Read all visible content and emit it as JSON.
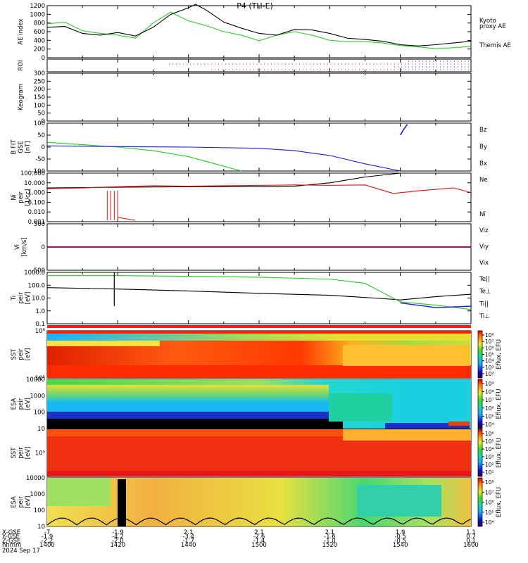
{
  "title": "P4  (TH-E)",
  "colors": {
    "black": "#000000",
    "red": "#e01010",
    "green": "#1fcc1f",
    "blue": "#1a1ae6",
    "ae_green": "#2ecc2e",
    "bar_red": "#ff1a1a"
  },
  "panels": [
    {
      "id": "ae",
      "ylabel": [
        "AE index"
      ],
      "yticks": [
        "1200",
        "1000",
        "800",
        "600",
        "400",
        "200",
        "0"
      ],
      "legend": [
        {
          "text": "Kyoto",
          "color": "#2ecc2e"
        },
        {
          "text": "proxy AE",
          "color": "#2ecc2e"
        },
        {
          "text": "Themis AE",
          "color": "#000000"
        }
      ]
    },
    {
      "id": "roi",
      "ylabel": [
        "ROI"
      ],
      "yticks": []
    },
    {
      "id": "keogram",
      "ylabel": [
        "Keogram"
      ],
      "yticks": [
        "300",
        "250",
        "200",
        "150",
        "100",
        "50",
        "0"
      ]
    },
    {
      "id": "bfit",
      "ylabel": [
        "B FIT",
        "GSE",
        "[nT]"
      ],
      "yticks": [
        "100",
        "50",
        "0",
        "-50",
        "-100"
      ],
      "legend": [
        {
          "text": "Bz",
          "color": "#e01010"
        },
        {
          "text": "By",
          "color": "#1fcc1f"
        },
        {
          "text": "Bx",
          "color": "#1a1ae6"
        }
      ]
    },
    {
      "id": "density",
      "ylabel": [
        "Ni",
        "peir",
        "[1/cc]"
      ],
      "yticks": [
        "100.000",
        "10.000",
        "1.000",
        "0.100",
        "0.010",
        "0.001"
      ],
      "legend": [
        {
          "text": "Ne",
          "color": "#e01010"
        },
        {
          "text": "Ni",
          "color": "#000000"
        }
      ]
    },
    {
      "id": "velocity",
      "ylabel": [
        "Vi",
        "[km/s]"
      ],
      "yticks": [
        "500",
        "0",
        "-500"
      ],
      "legend": [
        {
          "text": "Viz",
          "color": "#e01010"
        },
        {
          "text": "Viy",
          "color": "#1fcc1f"
        },
        {
          "text": "Vix",
          "color": "#1a1ae6"
        }
      ]
    },
    {
      "id": "temperature",
      "ylabel": [
        "Ti",
        "peir",
        "[eV]"
      ],
      "yticks": [
        "1000.0",
        "100.0",
        "10.0",
        "1.0",
        "0.1"
      ],
      "legend": [
        {
          "text": "Te||",
          "color": "#000000"
        },
        {
          "text": "Te⊥",
          "color": "#e01010"
        },
        {
          "text": "Ti||",
          "color": "#1fcc1f"
        },
        {
          "text": "Ti⊥",
          "color": "#1a1ae6"
        }
      ]
    },
    {
      "id": "sst_e",
      "ylabel": [
        "SST",
        "peir",
        "[eV]"
      ],
      "yticks": [
        "10⁶",
        "10⁵"
      ],
      "cbar": "Eflux, EFU",
      "cbar_ticks": [
        "10⁸",
        "10⁷",
        "10⁶",
        "10⁵",
        "10⁴",
        "10³",
        "10²"
      ]
    },
    {
      "id": "esa_e",
      "ylabel": [
        "ESA",
        "peir",
        "[eV]"
      ],
      "yticks": [
        "10000",
        "1000",
        "100",
        "10"
      ],
      "cbar": "Eflux, EFU",
      "cbar_ticks": [
        "10⁹",
        "10⁸",
        "10⁷",
        "10⁶",
        "10⁵",
        "10⁴"
      ]
    },
    {
      "id": "sst_i",
      "ylabel": [
        "SST",
        "peir",
        "[eV]"
      ],
      "yticks": [
        "10⁵"
      ],
      "cbar": "Eflux, EFU",
      "cbar_ticks": [
        "10⁶",
        "10⁵",
        "10⁴",
        "10³",
        "10²",
        "10¹"
      ]
    },
    {
      "id": "esa_i",
      "ylabel": [
        "ESA",
        "peir",
        "[eV]"
      ],
      "yticks": [
        "10000",
        "1000",
        "100",
        "10"
      ],
      "cbar": "Eflux, EFU",
      "cbar_ticks": [
        "10⁸",
        "10⁷",
        "10⁶",
        "10⁵",
        "10⁴"
      ]
    }
  ],
  "footer": {
    "row_labels": [
      "X-GSE",
      "Y-GSE",
      "Z-GSE",
      "hhmm",
      "2024 Sep 17"
    ],
    "columns": [
      {
        "x": "-7",
        "y": "-1.9",
        "z": "-2.2",
        "t": "1400"
      },
      {
        "x": "-1.9",
        "y": "-4.2",
        "z": "-2.0",
        "t": "1420"
      },
      {
        "x": "2.1",
        "y": "-3.4",
        "z": "-1.7",
        "t": "1440"
      },
      {
        "x": "2.1",
        "y": "-2.6",
        "z": "-1.4",
        "t": "1500"
      },
      {
        "x": "2.1",
        "y": "-1.6",
        "z": "-1.0",
        "t": "1520"
      },
      {
        "x": "1.9",
        "y": "-0.5",
        "z": "-0.5",
        "t": "1540"
      },
      {
        "x": "1.1",
        "y": "0.7",
        "z": "0.1",
        "t": "1600"
      }
    ]
  },
  "chart_data": {
    "type": "line",
    "title": "P4  (TH-E)",
    "time_range": [
      "1400",
      "1600"
    ],
    "time_unit": "hhmm",
    "ae": {
      "ylim": [
        0,
        1200
      ],
      "series": [
        {
          "name": "Themis AE",
          "x": [
            1400,
            1405,
            1410,
            1415,
            1420,
            1425,
            1430,
            1435,
            1440,
            1442,
            1445,
            1450,
            1455,
            1500,
            1505,
            1510,
            1515,
            1520,
            1525,
            1530,
            1535,
            1540,
            1545,
            1550,
            1555,
            1600
          ],
          "values": [
            700,
            720,
            560,
            520,
            580,
            500,
            700,
            1000,
            1150,
            1230,
            1100,
            820,
            680,
            560,
            520,
            650,
            640,
            560,
            450,
            420,
            380,
            300,
            270,
            300,
            340,
            380
          ]
        },
        {
          "name": "Kyoto proxy AE",
          "x": [
            1400,
            1405,
            1410,
            1415,
            1420,
            1425,
            1430,
            1435,
            1440,
            1445,
            1450,
            1455,
            1500,
            1505,
            1510,
            1515,
            1520,
            1525,
            1530,
            1535,
            1540,
            1545,
            1550,
            1555,
            1600
          ],
          "values": [
            780,
            820,
            620,
            560,
            520,
            450,
            800,
            1050,
            850,
            740,
            600,
            520,
            390,
            520,
            600,
            520,
            400,
            370,
            370,
            340,
            280,
            250,
            210,
            230,
            260
          ]
        }
      ]
    },
    "bfit": {
      "ylim": [
        -100,
        100
      ],
      "series": [
        {
          "name": "By",
          "x": [
            1400,
            1410,
            1420,
            1430,
            1440,
            1450,
            1455
          ],
          "values": [
            20,
            10,
            0,
            -15,
            -40,
            -80,
            -100
          ]
        },
        {
          "name": "Bx",
          "x": [
            1400,
            1420,
            1440,
            1500,
            1510,
            1520,
            1530,
            1540
          ],
          "values": [
            5,
            2,
            0,
            -5,
            -15,
            -35,
            -70,
            -100
          ]
        },
        {
          "name": "Bz",
          "x": [
            1540,
            1541,
            1542
          ],
          "values": [
            50,
            75,
            95
          ]
        }
      ]
    },
    "density": {
      "ylim": [
        0.001,
        100
      ],
      "scale": "log",
      "series": [
        {
          "name": "Ne",
          "x": [
            1400,
            1410,
            1420,
            1430,
            1440,
            1450,
            1500,
            1510,
            1520,
            1530,
            1538,
            1545,
            1555,
            1600
          ],
          "values": [
            2.5,
            3,
            4,
            5,
            4.5,
            5,
            5.5,
            6,
            5.5,
            6,
            0.8,
            1.5,
            3,
            1
          ]
        },
        {
          "name": "Ni",
          "x": [
            1400,
            1420,
            1440,
            1500,
            1510,
            1520,
            1530,
            1540,
            1550,
            1560
          ],
          "values": [
            3,
            3.5,
            4,
            4,
            4.5,
            10,
            40,
            100,
            100,
            100
          ]
        }
      ]
    },
    "velocity": {
      "ylim": [
        -800,
        800
      ],
      "series": [
        {
          "name": "Viz",
          "x": [
            1400,
            1600
          ],
          "values": [
            0,
            0
          ]
        },
        {
          "name": "Viy",
          "x": [
            1400,
            1600
          ],
          "values": [
            0,
            0
          ]
        },
        {
          "name": "Vix",
          "x": [
            1400,
            1600
          ],
          "values": [
            0,
            0
          ]
        }
      ]
    },
    "temperature": {
      "ylim": [
        0.1,
        5000
      ],
      "scale": "log",
      "series": [
        {
          "name": "Te||",
          "x": [
            1400,
            1420,
            1440,
            1500,
            1520,
            1535,
            1540,
            1550,
            1600
          ],
          "values": [
            200,
            150,
            100,
            60,
            40,
            20,
            15,
            30,
            50
          ]
        },
        {
          "name": "Ti||",
          "x": [
            1400,
            1420,
            1440,
            1500,
            1520,
            1530,
            1540,
            1550,
            1600
          ],
          "values": [
            2500,
            2500,
            2200,
            1800,
            1200,
            500,
            10,
            5,
            2
          ]
        },
        {
          "name": "Ti⊥",
          "x": [
            1540,
            1550,
            1560,
            1600
          ],
          "values": [
            8,
            3,
            4,
            6
          ]
        }
      ]
    }
  }
}
